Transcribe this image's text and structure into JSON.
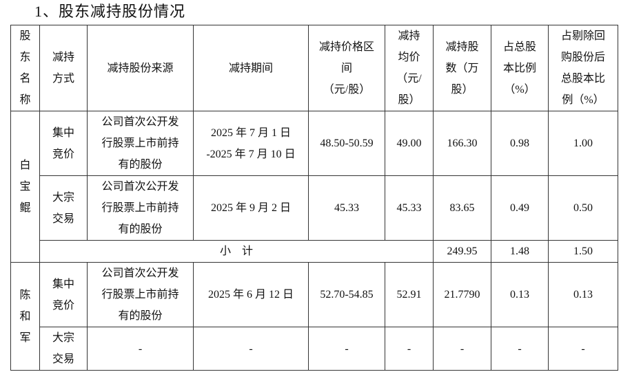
{
  "title": "1、股东减持股份情况",
  "headers": [
    [
      "股",
      "东",
      "名",
      "称"
    ],
    [
      "减持",
      "方式"
    ],
    [
      "减持股份来源"
    ],
    [
      "减持期间"
    ],
    [
      "减持价格区",
      "间",
      "（元/股）"
    ],
    [
      "减持",
      "均价",
      "（元/",
      "股）"
    ],
    [
      "减持股",
      "数（万",
      "股）"
    ],
    [
      "占总股",
      "本比例",
      "（%）"
    ],
    [
      "占剔除回",
      "购股份后",
      "总股本比",
      "例（%）"
    ]
  ],
  "shareholders": [
    {
      "name": [
        "白",
        "宝",
        "鲲"
      ],
      "rows": [
        {
          "method": [
            "集中",
            "竞价"
          ],
          "source": [
            "公司首次公开发",
            "行股票上市前持",
            "有的股份"
          ],
          "period": [
            "2025 年 7 月 1 日",
            "-2025 年 7 月 10 日"
          ],
          "price_range": "48.50-50.59",
          "avg_price": "49.00",
          "shares": "166.30",
          "ratio_total": "0.98",
          "ratio_excl": "1.00"
        },
        {
          "method": [
            "大宗",
            "交易"
          ],
          "source": [
            "公司首次公开发",
            "行股票上市前持",
            "有的股份"
          ],
          "period": [
            "2025 年 9 月 2 日"
          ],
          "price_range": "45.33",
          "avg_price": "45.33",
          "shares": "83.65",
          "ratio_total": "0.49",
          "ratio_excl": "0.50"
        }
      ],
      "subtotal": {
        "label": "小　计",
        "shares": "249.95",
        "ratio_total": "1.48",
        "ratio_excl": "1.50"
      }
    },
    {
      "name": [
        "陈",
        "和",
        "军"
      ],
      "rows": [
        {
          "method": [
            "集中",
            "竞价"
          ],
          "source": [
            "公司首次公开发",
            "行股票上市前持",
            "有的股份"
          ],
          "period": [
            "2025 年 6 月 12 日"
          ],
          "price_range": "52.70-54.85",
          "avg_price": "52.91",
          "shares": "21.7790",
          "ratio_total": "0.13",
          "ratio_excl": "0.13"
        },
        {
          "method": [
            "大宗",
            "交易"
          ],
          "source": [
            "-"
          ],
          "period": [
            "-"
          ],
          "price_range": "-",
          "avg_price": "-",
          "shares": "-",
          "ratio_total": "-",
          "ratio_excl": "-"
        }
      ]
    }
  ]
}
